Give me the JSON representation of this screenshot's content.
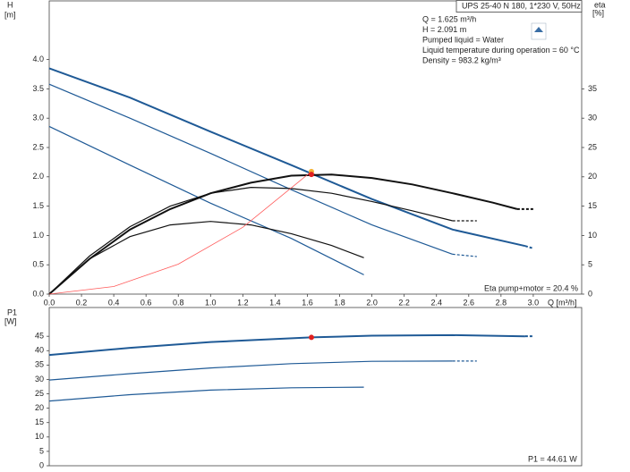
{
  "chart_data": [
    {
      "type": "line",
      "title": "UPS 25-40 N 180, 1*230 V, 50Hz",
      "annotations": [
        "Q = 1.625 m³/h",
        "H = 2.091 m",
        "Pumped liquid = Water",
        "Liquid temperature during operation = 60 °C",
        "Density = 983.2 kg/m³"
      ],
      "footnote": "Eta pump+motor = 20.4 %",
      "y_label": "H",
      "y_unit": "[m]",
      "y2_label": "eta",
      "y2_unit": "[%]",
      "x_label": "Q [m³/h]",
      "xlim": [
        0,
        3.3
      ],
      "ylim": [
        0,
        5
      ],
      "y2lim": [
        0,
        50
      ],
      "xticks": [
        {
          "value": 0,
          "label": "0.0"
        },
        0.2,
        0.4,
        0.6,
        0.8,
        {
          "value": 1,
          "label": "1.0"
        },
        1.2,
        1.4,
        1.6,
        1.8,
        {
          "value": 2,
          "label": "2.0"
        },
        2.2,
        2.4,
        2.6,
        2.8,
        {
          "value": 3,
          "label": "3.0"
        }
      ],
      "yticks": [
        {
          "value": 0,
          "label": "0.0"
        },
        0.5,
        {
          "value": 1,
          "label": "1.0"
        },
        1.5,
        {
          "value": 2,
          "label": "2.0"
        },
        2.5,
        {
          "value": 3,
          "label": "3.0"
        },
        3.5,
        {
          "value": 4,
          "label": "4.0"
        }
      ],
      "y2ticks": [
        0,
        5,
        10,
        15,
        20,
        25,
        30,
        35
      ],
      "series": [
        {
          "color": "#1f5a96",
          "width": 2,
          "x": [
            0,
            0.5,
            1.0,
            1.5,
            2.0,
            2.5,
            2.95
          ],
          "values": [
            3.85,
            3.35,
            2.77,
            2.2,
            1.62,
            1.1,
            0.82
          ],
          "dash_end": [
            3.0,
            0.78
          ]
        },
        {
          "color": "#1f5a96",
          "width": 1.2,
          "x": [
            0,
            0.5,
            1.0,
            1.5,
            2.0,
            2.5
          ],
          "values": [
            3.58,
            3.0,
            2.4,
            1.78,
            1.18,
            0.68
          ],
          "dash_end": [
            2.65,
            0.64
          ]
        },
        {
          "color": "#1f5a96",
          "width": 1.2,
          "x": [
            0,
            0.5,
            1.0,
            1.5,
            1.95
          ],
          "values": [
            2.86,
            2.2,
            1.55,
            0.95,
            0.33
          ]
        },
        {
          "color": "#111111",
          "width": 2,
          "axis": "y2",
          "x": [
            0,
            0.25,
            0.5,
            0.75,
            1.0,
            1.25,
            1.5,
            1.75,
            2.0,
            2.25,
            2.5,
            2.75,
            2.9
          ],
          "values": [
            0,
            6,
            11,
            14.5,
            17.2,
            19,
            20.2,
            20.4,
            19.8,
            18.7,
            17.2,
            15.6,
            14.5
          ],
          "dash_end": [
            3.0,
            14.5
          ]
        },
        {
          "color": "#111111",
          "width": 1.2,
          "axis": "y2",
          "x": [
            0,
            0.25,
            0.5,
            0.75,
            1.0,
            1.25,
            1.5,
            1.75,
            2.0,
            2.25,
            2.5
          ],
          "values": [
            0,
            6.5,
            11.5,
            15,
            17.2,
            18.2,
            18,
            17.2,
            15.8,
            14.2,
            12.5
          ],
          "dash_end": [
            2.65,
            12.5
          ]
        },
        {
          "color": "#111111",
          "width": 1.2,
          "axis": "y2",
          "x": [
            0,
            0.25,
            0.5,
            0.75,
            1.0,
            1.25,
            1.5,
            1.75,
            1.95
          ],
          "values": [
            0,
            6,
            9.8,
            11.8,
            12.4,
            11.8,
            10.3,
            8.3,
            6.2
          ]
        },
        {
          "color": "#ff5a5a",
          "width": 0.8,
          "x": [
            0,
            0.4,
            0.8,
            1.2,
            1.625
          ],
          "values": [
            0,
            0.13,
            0.51,
            1.14,
            2.091
          ]
        }
      ],
      "points": [
        {
          "color": "#f5b335",
          "x": 1.625,
          "y": 2.091
        },
        {
          "color": "#e02020",
          "axis": "y2",
          "x": 1.625,
          "y": 20.4
        }
      ]
    },
    {
      "type": "line",
      "y_label": "P1",
      "y_unit": "[W]",
      "footnote": "P1 = 44.61 W",
      "xlim": [
        0,
        3.3
      ],
      "ylim": [
        0,
        55
      ],
      "yticks": [
        0,
        5,
        10,
        15,
        20,
        25,
        30,
        35,
        40,
        45
      ],
      "series": [
        {
          "color": "#1f5a96",
          "width": 2,
          "x": [
            0,
            0.5,
            1.0,
            1.625,
            2.0,
            2.5,
            2.95
          ],
          "values": [
            38.5,
            41,
            43,
            44.61,
            45.2,
            45.4,
            45
          ],
          "dash_end": [
            3.0,
            45
          ]
        },
        {
          "color": "#1f5a96",
          "width": 1.2,
          "x": [
            0,
            0.5,
            1.0,
            1.5,
            2.0,
            2.5
          ],
          "values": [
            29.8,
            32,
            34,
            35.5,
            36.3,
            36.4
          ],
          "dash_end": [
            2.65,
            36.4
          ]
        },
        {
          "color": "#1f5a96",
          "width": 1.2,
          "x": [
            0,
            0.5,
            1.0,
            1.5,
            1.95
          ],
          "values": [
            22.5,
            24.7,
            26.3,
            27.1,
            27.3
          ]
        }
      ],
      "points": [
        {
          "color": "#e02020",
          "x": 1.625,
          "y": 44.61
        }
      ]
    }
  ]
}
